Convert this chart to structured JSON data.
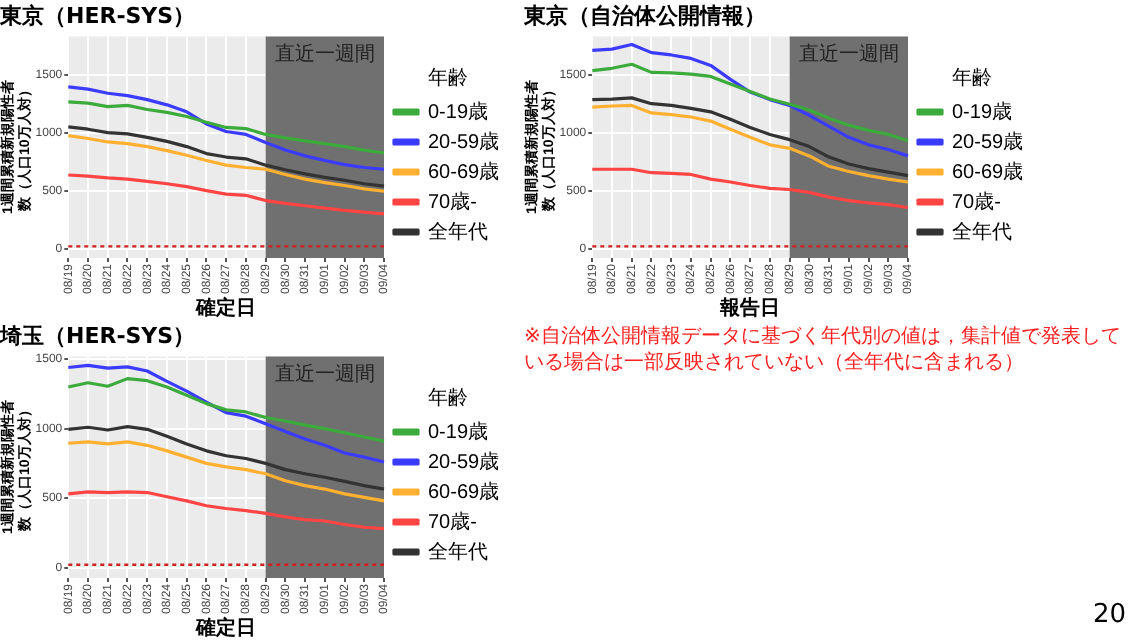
{
  "chart_data": [
    {
      "type": "line",
      "title": "東京（HER-SYS）",
      "xlabel": "確定日",
      "ylabel": "1週間累積新規陽性者数（人口10万人対）",
      "legend_title": "年齢",
      "legend": "right",
      "grid": true,
      "marker": "none",
      "line_style": "solid",
      "categories": [
        "08/19",
        "08/20",
        "08/21",
        "08/22",
        "08/23",
        "08/24",
        "08/25",
        "08/26",
        "08/27",
        "08/28",
        "08/29",
        "08/30",
        "08/31",
        "09/01",
        "09/02",
        "09/03",
        "09/04"
      ],
      "ylim": [
        -80,
        1830
      ],
      "yticks": [
        0,
        500,
        1000,
        1500
      ],
      "series": [
        {
          "name": "0-19歳",
          "color": "#3cab3c",
          "values": [
            1265,
            1255,
            1225,
            1235,
            1200,
            1175,
            1140,
            1090,
            1045,
            1035,
            985,
            955,
            930,
            905,
            880,
            850,
            825
          ]
        },
        {
          "name": "20-59歳",
          "color": "#3b3bff",
          "values": [
            1395,
            1375,
            1340,
            1320,
            1285,
            1240,
            1180,
            1075,
            1010,
            985,
            915,
            850,
            800,
            760,
            725,
            700,
            685
          ]
        },
        {
          "name": "60-69歳",
          "color": "#ffb030",
          "values": [
            975,
            950,
            920,
            905,
            880,
            845,
            805,
            760,
            720,
            700,
            685,
            640,
            600,
            570,
            545,
            515,
            495
          ]
        },
        {
          "name": "70歳-",
          "color": "#ff4444",
          "values": [
            635,
            625,
            610,
            600,
            580,
            560,
            535,
            500,
            470,
            460,
            415,
            390,
            370,
            350,
            330,
            315,
            300
          ]
        },
        {
          "name": "全年代",
          "color": "#333333",
          "values": [
            1050,
            1030,
            1000,
            990,
            960,
            925,
            880,
            820,
            790,
            775,
            720,
            680,
            645,
            615,
            590,
            560,
            540
          ]
        }
      ],
      "bands": [
        {
          "axis": "x",
          "from": "08/29",
          "to": "09/04",
          "label": "直近一週間",
          "color": "#707070"
        }
      ],
      "ref_lines": [
        {
          "axis": "y",
          "value": 20,
          "color": "#cc2222",
          "line_style": "dotted"
        }
      ]
    },
    {
      "type": "line",
      "title": "東京（自治体公開情報）",
      "xlabel": "報告日",
      "ylabel": "1週間累積新規陽性者数（人口10万人対）",
      "legend_title": "年齢",
      "legend": "right",
      "grid": true,
      "marker": "none",
      "line_style": "solid",
      "categories": [
        "08/19",
        "08/20",
        "08/21",
        "08/22",
        "08/23",
        "08/24",
        "08/25",
        "08/26",
        "08/27",
        "08/28",
        "08/29",
        "08/30",
        "08/31",
        "09/01",
        "09/02",
        "09/03",
        "09/04"
      ],
      "ylim": [
        -80,
        1830
      ],
      "yticks": [
        0,
        500,
        1000,
        1500
      ],
      "series": [
        {
          "name": "0-19歳",
          "color": "#3cab3c",
          "values": [
            1535,
            1555,
            1590,
            1520,
            1515,
            1505,
            1485,
            1420,
            1355,
            1290,
            1245,
            1195,
            1125,
            1065,
            1020,
            985,
            930
          ]
        },
        {
          "name": "20-59歳",
          "color": "#3b3bff",
          "values": [
            1710,
            1720,
            1760,
            1690,
            1670,
            1640,
            1580,
            1460,
            1350,
            1285,
            1235,
            1150,
            1055,
            960,
            895,
            855,
            800
          ]
        },
        {
          "name": "60-69歳",
          "color": "#ffb030",
          "values": [
            1220,
            1230,
            1235,
            1170,
            1155,
            1135,
            1100,
            1030,
            960,
            895,
            865,
            800,
            710,
            665,
            630,
            600,
            575
          ]
        },
        {
          "name": "70歳-",
          "color": "#ff4444",
          "values": [
            685,
            685,
            685,
            655,
            650,
            640,
            600,
            575,
            545,
            520,
            510,
            485,
            445,
            415,
            395,
            380,
            355
          ]
        },
        {
          "name": "全年代",
          "color": "#333333",
          "values": [
            1285,
            1290,
            1300,
            1250,
            1235,
            1210,
            1180,
            1115,
            1045,
            985,
            940,
            880,
            790,
            730,
            690,
            660,
            630
          ]
        }
      ],
      "bands": [
        {
          "axis": "x",
          "from": "08/29",
          "to": "09/04",
          "label": "直近一週間",
          "color": "#707070"
        }
      ],
      "ref_lines": [
        {
          "axis": "y",
          "value": 20,
          "color": "#cc2222",
          "line_style": "dotted"
        }
      ],
      "annotations": [
        "※自治体公開情報データに基づく年代別の値は，集計値で発表している場合は一部反映されていない（全年代に含まれる）",
        "20"
      ]
    },
    {
      "type": "line",
      "title": "埼玉（HER-SYS）",
      "xlabel": "確定日",
      "ylabel": "1週間累積新規陽性者数（人口10万人対）",
      "legend_title": "年齢",
      "legend": "right",
      "grid": true,
      "marker": "none",
      "line_style": "solid",
      "categories": [
        "08/19",
        "08/20",
        "08/21",
        "08/22",
        "08/23",
        "08/24",
        "08/25",
        "08/26",
        "08/27",
        "08/28",
        "08/29",
        "08/30",
        "08/31",
        "09/01",
        "09/02",
        "09/03",
        "09/04"
      ],
      "ylim": [
        -75,
        1520
      ],
      "yticks": [
        0,
        500,
        1000,
        1500
      ],
      "series": [
        {
          "name": "0-19歳",
          "color": "#3cab3c",
          "values": [
            1300,
            1330,
            1305,
            1360,
            1345,
            1300,
            1240,
            1180,
            1135,
            1120,
            1080,
            1055,
            1025,
            1000,
            970,
            940,
            910
          ]
        },
        {
          "name": "20-59歳",
          "color": "#3b3bff",
          "values": [
            1440,
            1455,
            1435,
            1445,
            1415,
            1340,
            1270,
            1190,
            1115,
            1090,
            1035,
            980,
            925,
            880,
            825,
            795,
            760
          ]
        },
        {
          "name": "60-69歳",
          "color": "#ffb030",
          "values": [
            895,
            905,
            890,
            905,
            880,
            840,
            795,
            750,
            725,
            705,
            675,
            625,
            590,
            565,
            530,
            505,
            480
          ]
        },
        {
          "name": "70歳-",
          "color": "#ff4444",
          "values": [
            530,
            545,
            540,
            545,
            540,
            510,
            480,
            445,
            425,
            410,
            390,
            365,
            345,
            335,
            310,
            290,
            280
          ]
        },
        {
          "name": "全年代",
          "color": "#333333",
          "values": [
            995,
            1010,
            990,
            1015,
            995,
            945,
            890,
            840,
            805,
            785,
            750,
            705,
            675,
            650,
            620,
            590,
            565
          ]
        }
      ],
      "bands": [
        {
          "axis": "x",
          "from": "08/29",
          "to": "09/04",
          "label": "直近一週間",
          "color": "#707070"
        }
      ],
      "ref_lines": [
        {
          "axis": "y",
          "value": 20,
          "color": "#cc2222",
          "line_style": "dotted"
        }
      ]
    }
  ]
}
